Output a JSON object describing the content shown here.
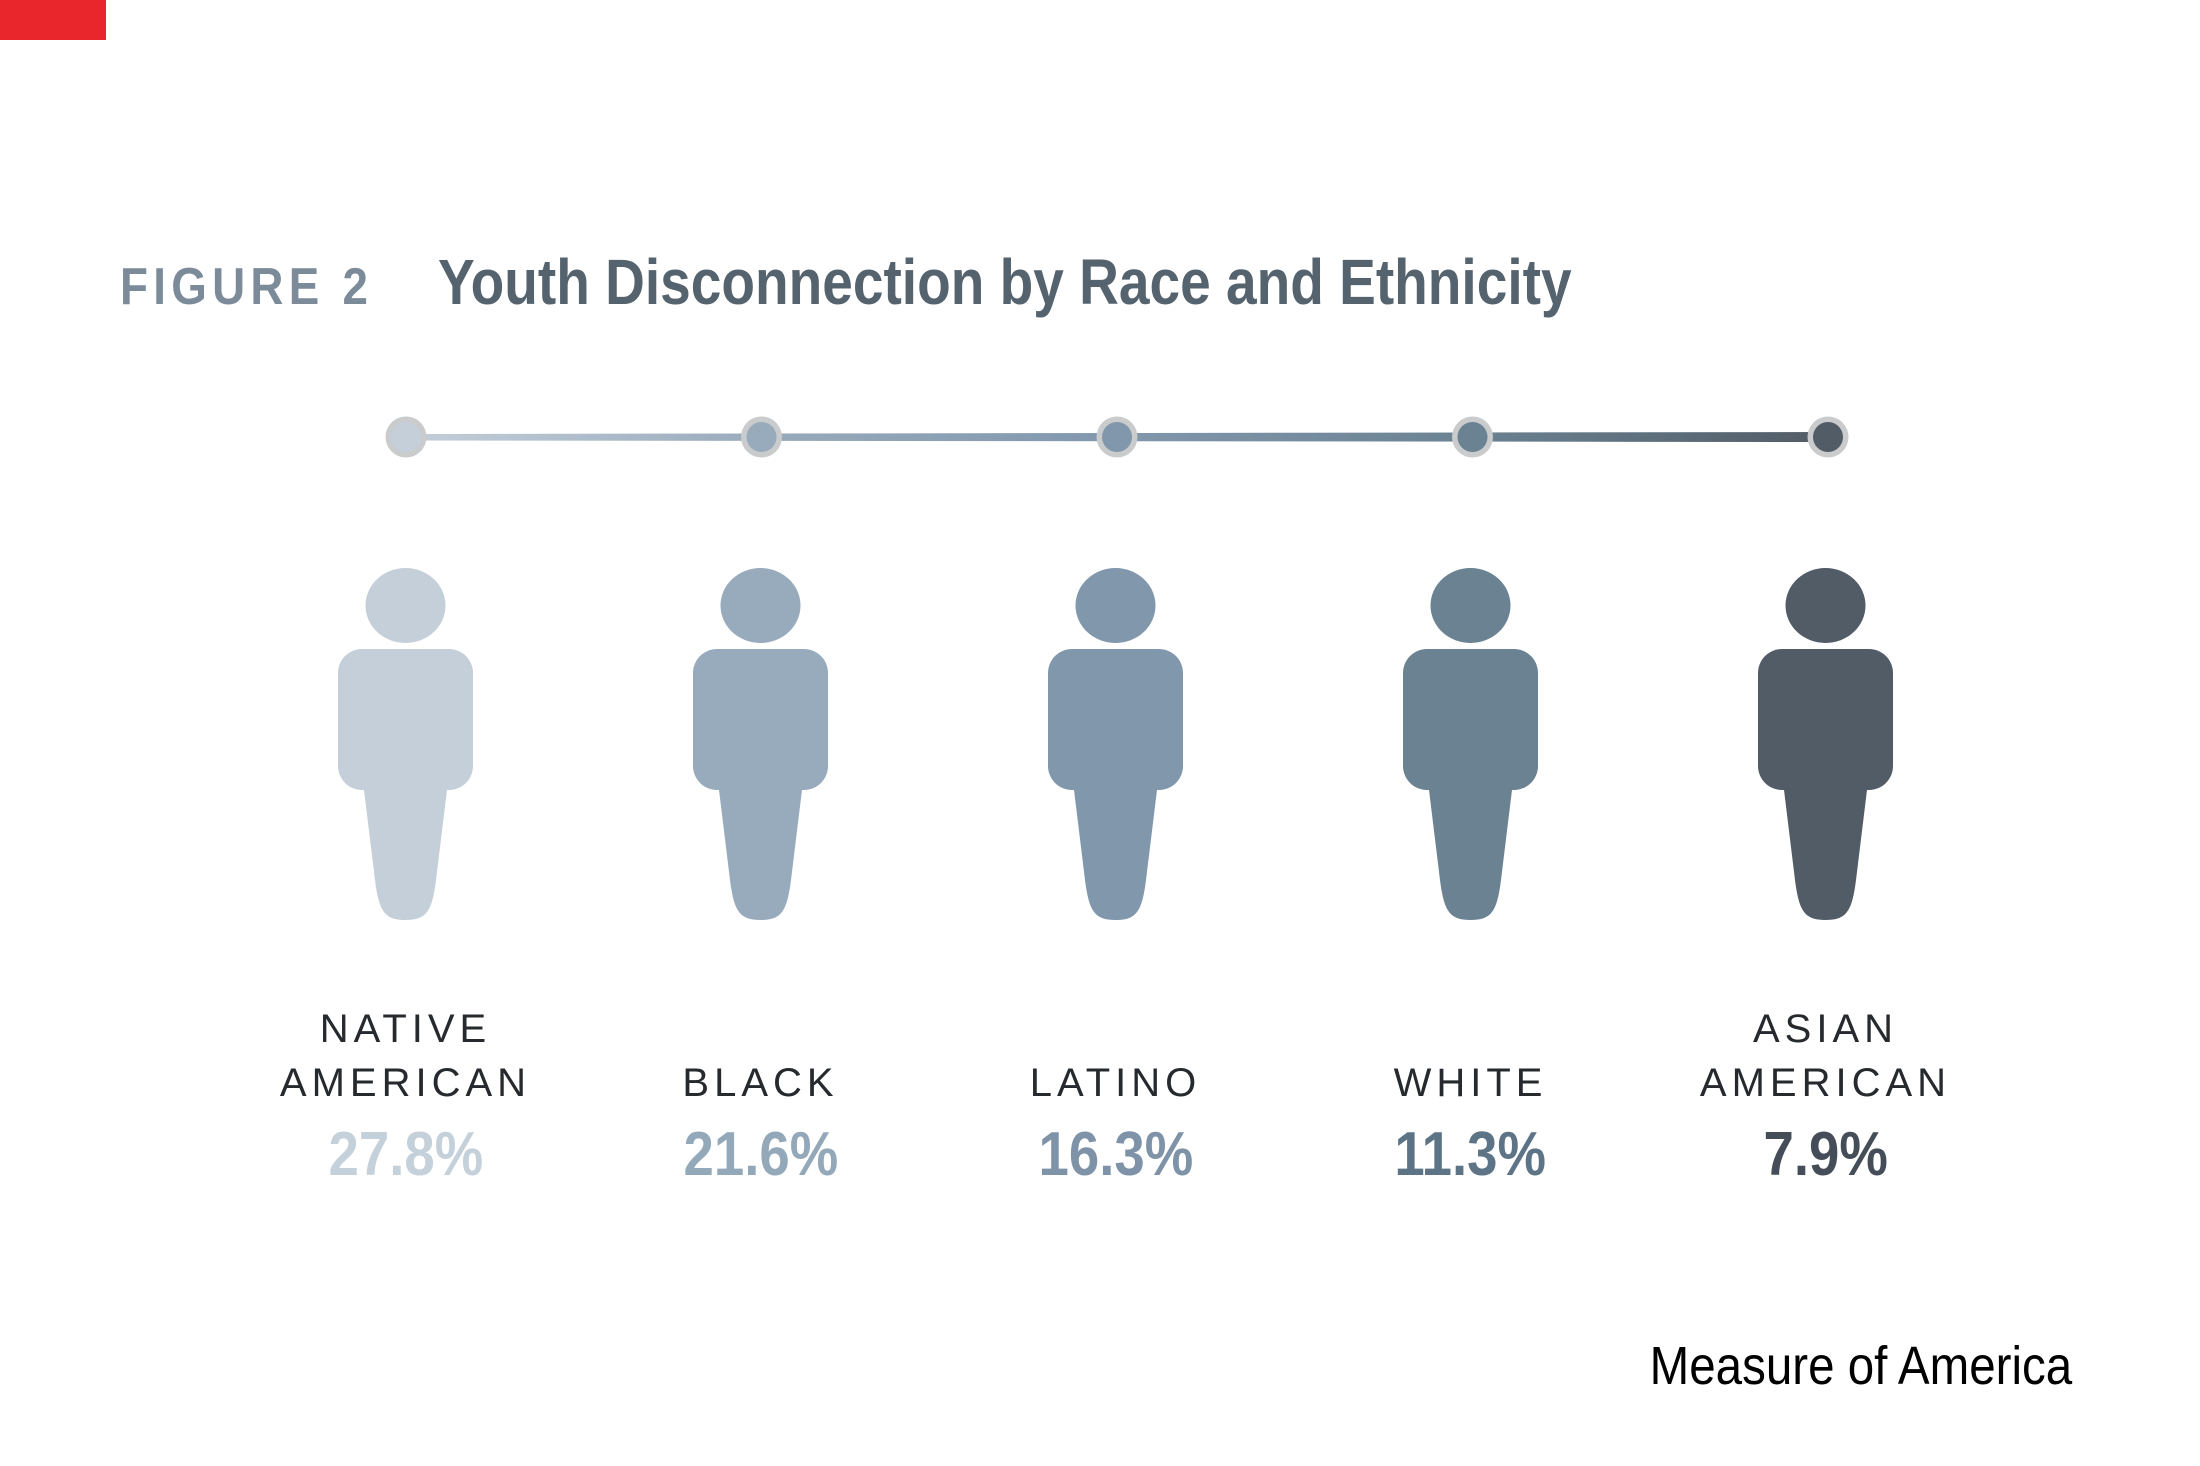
{
  "accent_color": "#e9262b",
  "figure": {
    "label": "FIGURE 2",
    "title": "Youth Disconnection by Race and Ethnicity"
  },
  "source": "Measure of America",
  "colors": {
    "figure_label": "#7c8b99",
    "figure_title": "#55636e",
    "category_label": "#26292d",
    "dot_ring": "#c9cbcd",
    "source_text": "#000000"
  },
  "chart_data": {
    "type": "pictogram",
    "title": "Youth Disconnection by Race and Ethnicity",
    "figure_label": "FIGURE 2",
    "categories": [
      "NATIVE AMERICAN",
      "BLACK",
      "LATINO",
      "WHITE",
      "ASIAN AMERICAN"
    ],
    "values": [
      27.8,
      21.6,
      16.3,
      11.3,
      7.9
    ],
    "value_labels": [
      "27.8%",
      "21.6%",
      "16.3%",
      "11.3%",
      "7.9%"
    ],
    "icon_colors": [
      "#c4cfda",
      "#98abbc",
      "#8197ac",
      "#6b8292",
      "#525c66"
    ],
    "value_text_colors": [
      "#c4d0da",
      "#93a8b9",
      "#7e93a8",
      "#5d7487",
      "#454e58"
    ],
    "legend_position": "none",
    "grid": false,
    "scale_axis": "horizontal dot scale above icons, light-to-dark left-to-right",
    "source": "Measure of America"
  }
}
